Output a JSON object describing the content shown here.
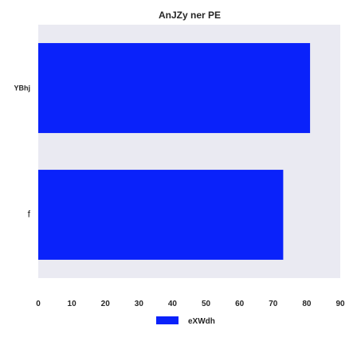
{
  "chart_data": {
    "type": "bar",
    "orientation": "horizontal",
    "title": "AnJZy ner PE",
    "categories": [
      "YBhj",
      "f"
    ],
    "series": [
      {
        "name": "eXWdh",
        "values": [
          81,
          73
        ],
        "color": "#0a22fa"
      }
    ],
    "xlabel": "",
    "ylabel": "",
    "xlim": [
      0,
      90
    ],
    "xticks": [
      0,
      10,
      20,
      30,
      40,
      50,
      60,
      70,
      80,
      90
    ],
    "grid": false,
    "legend_position": "bottom-center",
    "plot_background": "#eaeaf2"
  }
}
